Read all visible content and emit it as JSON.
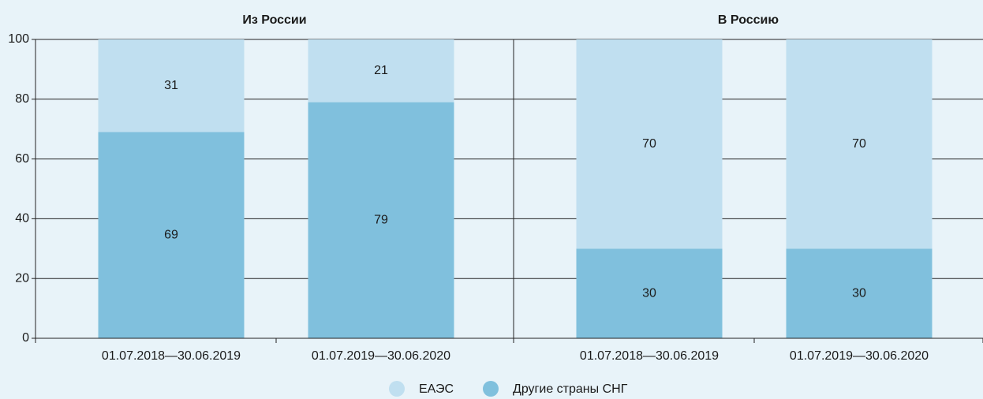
{
  "chart_data": [
    {
      "type": "bar",
      "stacked": true,
      "title": "Из России",
      "categories": [
        "01.07.2018—30.06.2019",
        "01.07.2019—30.06.2020"
      ],
      "series": [
        {
          "name": "ЕАЭС",
          "color": "#c0dff0",
          "values": [
            31,
            21
          ]
        },
        {
          "name": "Другие страны СНГ",
          "color": "#80c0dd",
          "values": [
            69,
            79
          ]
        }
      ],
      "ylim": [
        0,
        100
      ],
      "yticks": [
        0,
        20,
        40,
        60,
        80,
        100
      ],
      "grid": true,
      "ytick_labels": true
    },
    {
      "type": "bar",
      "stacked": true,
      "title": "В Россию",
      "categories": [
        "01.07.2018—30.06.2019",
        "01.07.2019—30.06.2020"
      ],
      "series": [
        {
          "name": "ЕАЭС",
          "color": "#c0dff0",
          "values": [
            70,
            70
          ]
        },
        {
          "name": "Другие страны СНГ",
          "color": "#80c0dd",
          "values": [
            30,
            30
          ]
        }
      ],
      "ylim": [
        0,
        100
      ],
      "yticks": [
        0,
        20,
        40,
        60,
        80,
        100
      ],
      "grid": true,
      "ytick_labels": false
    }
  ]
}
